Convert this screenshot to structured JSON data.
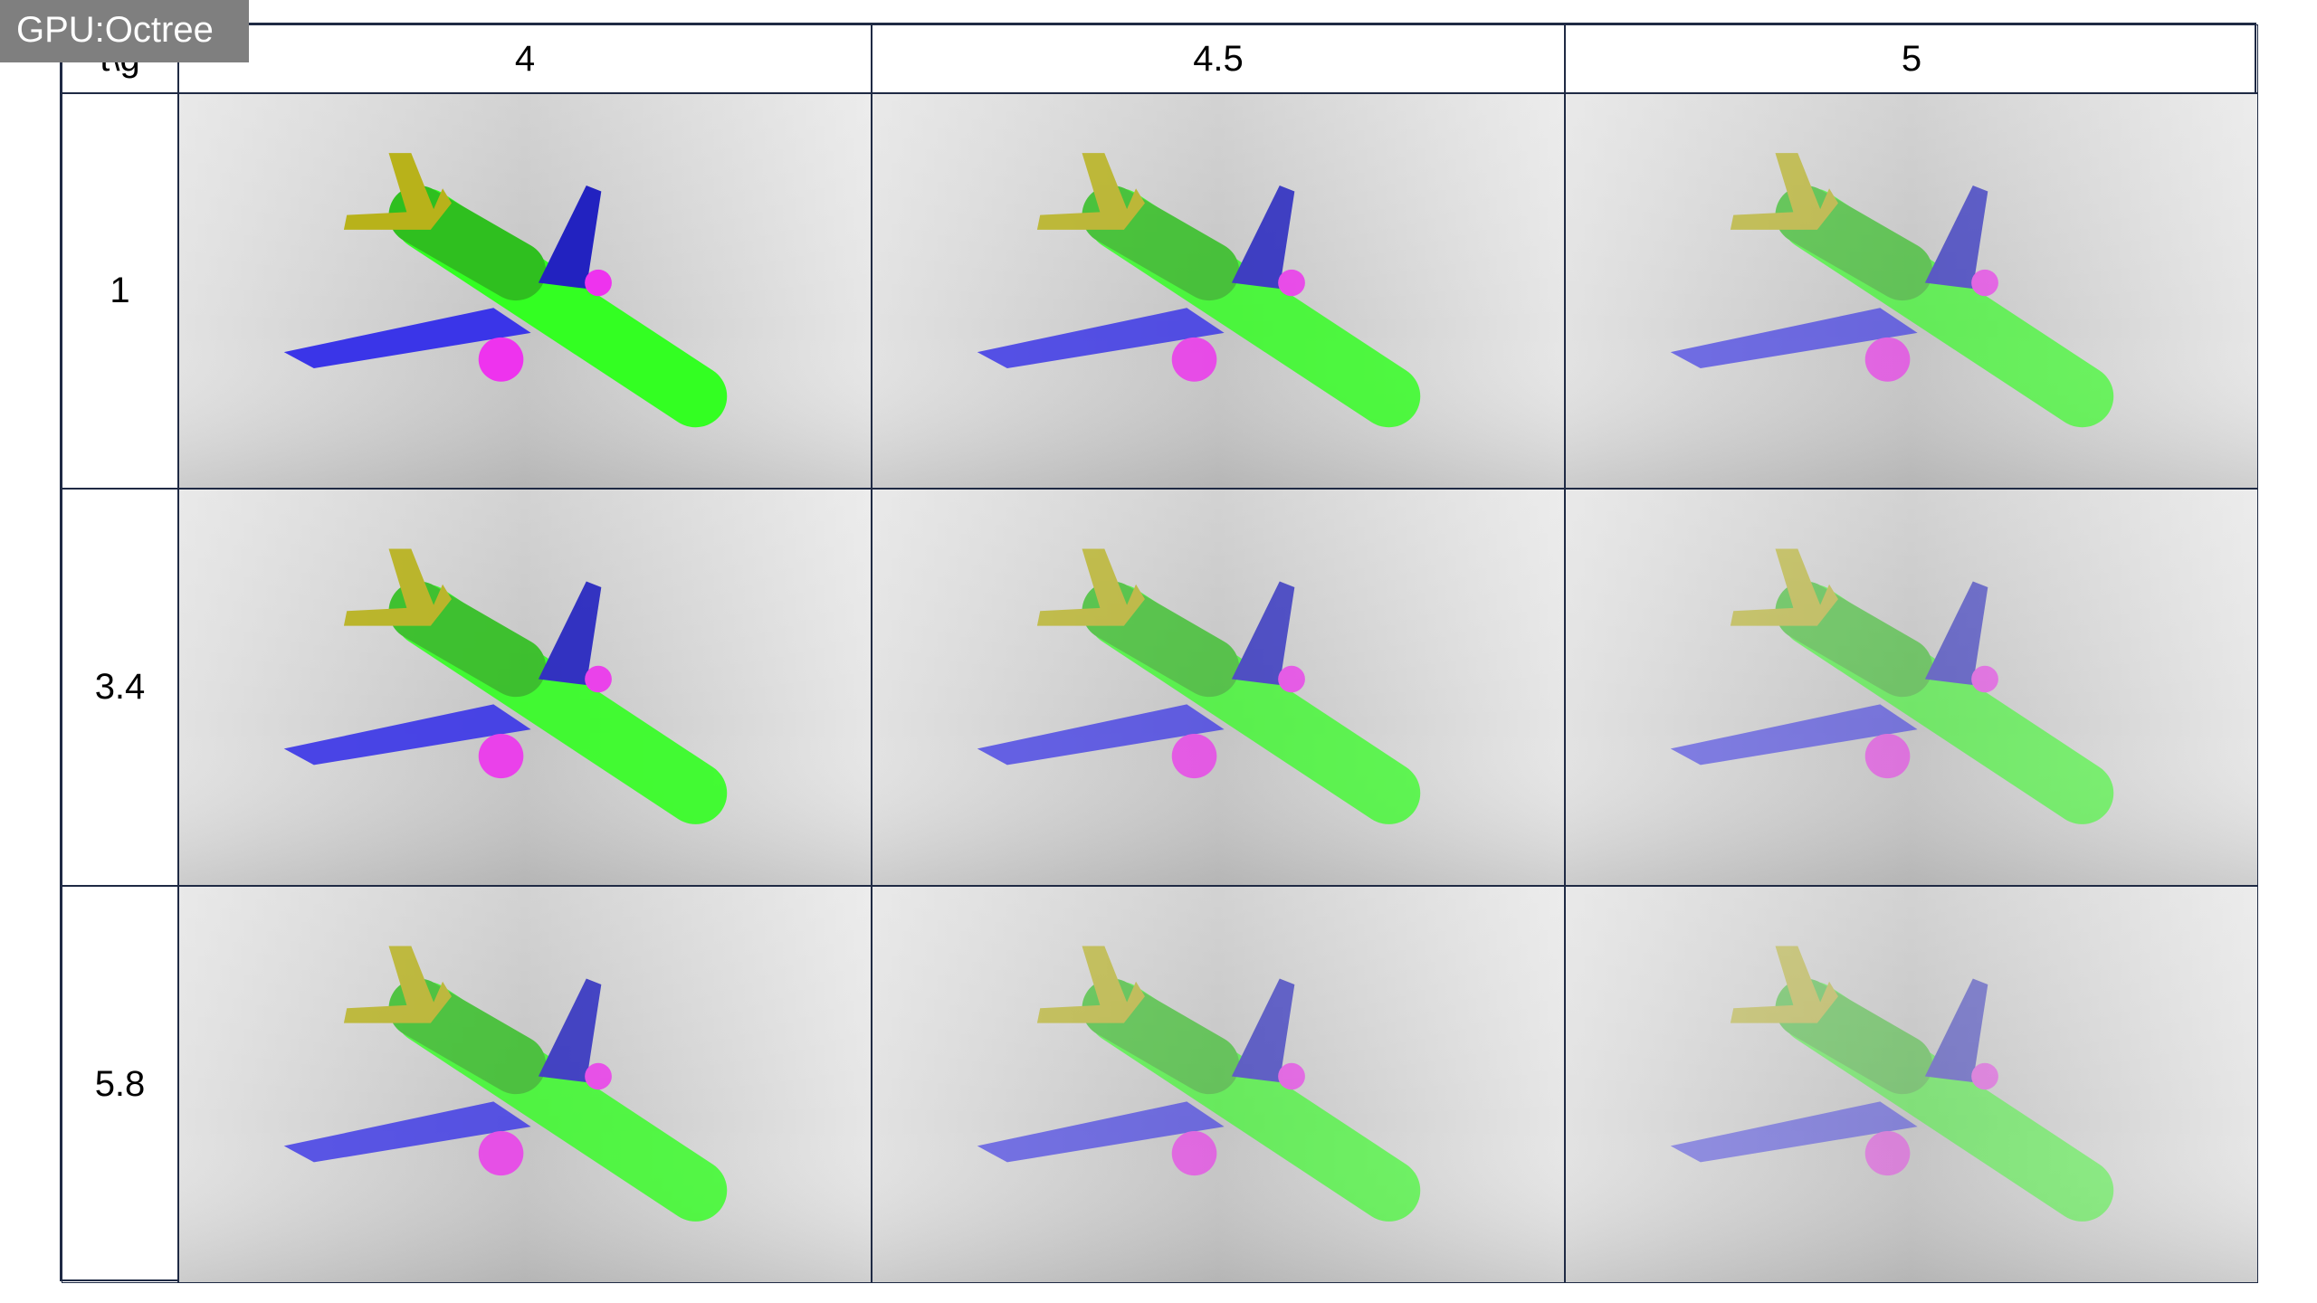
{
  "badge": "GPU:Octree",
  "table": {
    "header": [
      "t\\g",
      "4",
      "4.5",
      "5"
    ],
    "rows": [
      [
        "1"
      ],
      [
        "3.4"
      ],
      [
        "5.8"
      ]
    ]
  }
}
